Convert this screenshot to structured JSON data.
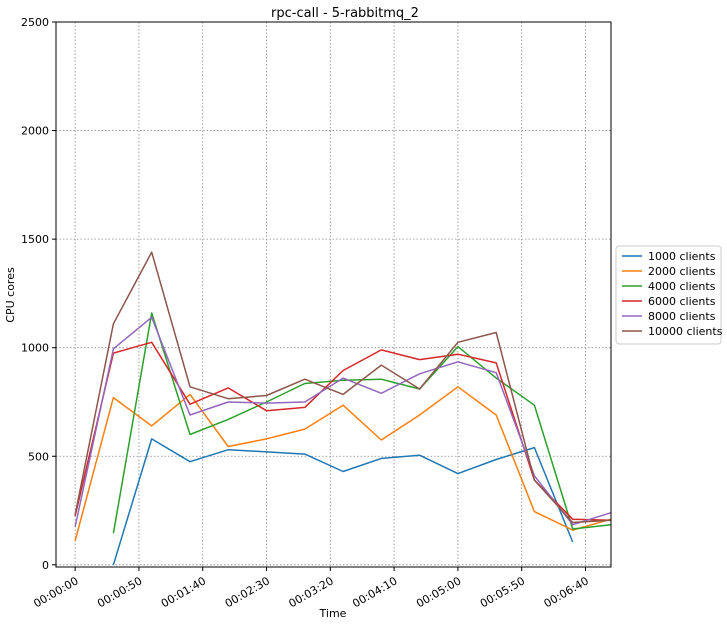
{
  "chart_data": {
    "type": "line",
    "title": "rpc-call - 5-rabbitmq_2",
    "xlabel": "Time",
    "ylabel": "CPU cores",
    "x_ticks": [
      "00:00:00",
      "00:00:50",
      "00:01:40",
      "00:02:30",
      "00:03:20",
      "00:04:10",
      "00:05:00",
      "00:05:50",
      "00:06:40"
    ],
    "x_tick_seconds": [
      0,
      50,
      100,
      150,
      200,
      250,
      300,
      350,
      400
    ],
    "xlim": [
      -15,
      420
    ],
    "ylim": [
      -10,
      2500
    ],
    "y_ticks": [
      0,
      500,
      1000,
      1500,
      2000,
      2500
    ],
    "grid": true,
    "legend_position": "outside-right",
    "series": [
      {
        "name": "1000 clients",
        "color": "#1f77b4",
        "x": [
          30,
          60,
          90,
          120,
          150,
          180,
          210,
          240,
          270,
          300,
          330,
          360,
          390
        ],
        "y": [
          0,
          580,
          475,
          530,
          520,
          510,
          430,
          490,
          505,
          420,
          485,
          540,
          105
        ]
      },
      {
        "name": "2000 clients",
        "color": "#ff7f0e",
        "x": [
          0,
          30,
          60,
          90,
          120,
          150,
          180,
          210,
          240,
          270,
          300,
          330,
          360,
          390,
          420
        ],
        "y": [
          110,
          770,
          640,
          785,
          545,
          580,
          625,
          735,
          575,
          690,
          820,
          690,
          245,
          160,
          210
        ]
      },
      {
        "name": "4000 clients",
        "color": "#2ca02c",
        "x": [
          30,
          60,
          90,
          120,
          150,
          180,
          210,
          240,
          270,
          300,
          330,
          360,
          390,
          420
        ],
        "y": [
          145,
          1160,
          600,
          670,
          750,
          835,
          850,
          855,
          810,
          1005,
          860,
          735,
          165,
          185
        ]
      },
      {
        "name": "6000 clients",
        "color": "#d62728",
        "x": [
          0,
          30,
          60,
          90,
          120,
          150,
          180,
          210,
          240,
          270,
          300,
          330,
          360,
          390,
          420
        ],
        "y": [
          225,
          975,
          1025,
          740,
          815,
          710,
          725,
          895,
          990,
          945,
          970,
          930,
          390,
          210,
          205
        ]
      },
      {
        "name": "8000 clients",
        "color": "#9467bd",
        "x": [
          0,
          30,
          60,
          90,
          120,
          150,
          180,
          210,
          240,
          270,
          300,
          330,
          360,
          390,
          420
        ],
        "y": [
          175,
          995,
          1140,
          690,
          750,
          745,
          750,
          860,
          790,
          880,
          935,
          885,
          410,
          185,
          240
        ]
      },
      {
        "name": "10000 clients",
        "color": "#8c564b",
        "x": [
          0,
          30,
          60,
          90,
          120,
          150,
          180,
          210,
          240,
          270,
          300,
          330,
          360,
          390,
          420
        ],
        "y": [
          230,
          1110,
          1440,
          820,
          765,
          780,
          855,
          785,
          920,
          810,
          1025,
          1070,
          390,
          195,
          205
        ]
      }
    ]
  }
}
